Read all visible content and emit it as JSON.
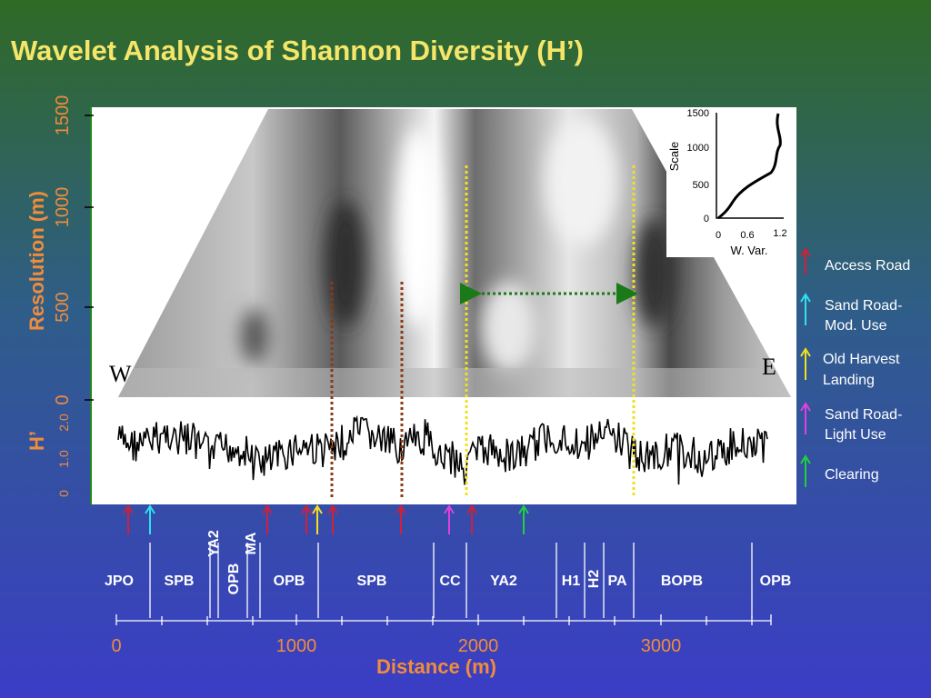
{
  "header": {
    "title": "Wavelet Analysis of Shannon Diversity (H’)"
  },
  "resolution_axis": {
    "label": "Resolution (m)",
    "ticks": [
      "0",
      "500",
      "1000",
      "1500"
    ]
  },
  "h_axis": {
    "label": "H’",
    "ticks": [
      "0",
      "1.0",
      "2.0"
    ]
  },
  "directions": {
    "west": "W",
    "east": "E"
  },
  "inset": {
    "y_label": "Scale",
    "y_ticks": [
      "0",
      "500",
      "1000",
      "1500"
    ],
    "x_ticks": [
      "0",
      "0.6",
      "1.2"
    ],
    "x_label": "W. Var."
  },
  "legend": [
    {
      "lines": [
        "Access Road"
      ]
    },
    {
      "lines": [
        "Sand Road-",
        "Mod. Use"
      ]
    },
    {
      "lines": [
        "Old Harvest",
        "Landing"
      ]
    },
    {
      "lines": [
        "Sand Road-",
        "Light Use"
      ]
    },
    {
      "lines": [
        "Clearing"
      ]
    }
  ],
  "segments": [
    "JPO",
    "SPB",
    "YA2",
    "OPB",
    "MA",
    "OPB",
    "SPB",
    "CC",
    "YA2",
    "H1",
    "H2",
    "PA",
    "BOPB",
    "OPB"
  ],
  "distance_axis": {
    "ticks": [
      "0",
      "1000",
      "2000",
      "3000"
    ],
    "label": "Distance (m)"
  }
}
